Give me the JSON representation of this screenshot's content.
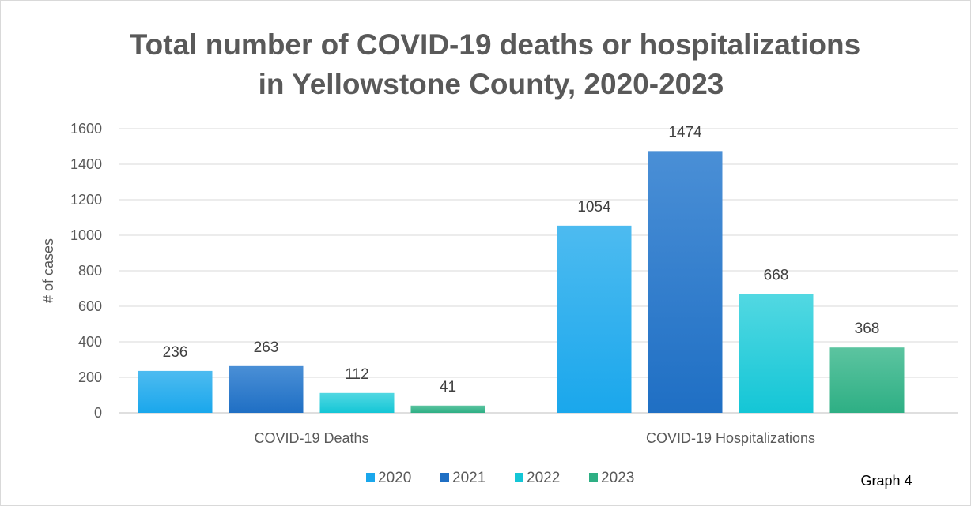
{
  "chart_data": {
    "type": "bar",
    "title_lines": [
      "Total number of COVID-19 deaths or hospitalizations",
      "in Yellowstone County, 2020-2023"
    ],
    "xlabel": "",
    "ylabel": "# of cases",
    "categories": [
      "COVID-19 Deaths",
      "COVID-19 Hospitalizations"
    ],
    "series": [
      {
        "name": "2020",
        "values": [
          236,
          1054
        ],
        "color": "#1AA7EC",
        "color_light": "#4DBBF0"
      },
      {
        "name": "2021",
        "values": [
          263,
          1474
        ],
        "color": "#1F6FC4",
        "color_light": "#4A8FD6"
      },
      {
        "name": "2022",
        "values": [
          112,
          668
        ],
        "color": "#14C6D6",
        "color_light": "#52D8E2"
      },
      {
        "name": "2023",
        "values": [
          41,
          368
        ],
        "color": "#2EAF84",
        "color_light": "#5CC4A0"
      }
    ],
    "ylim": [
      0,
      1600
    ],
    "yticks": [
      0,
      200,
      400,
      600,
      800,
      1000,
      1200,
      1400,
      1600
    ],
    "grid": true,
    "legend_position": "bottom"
  },
  "note": "Graph 4"
}
